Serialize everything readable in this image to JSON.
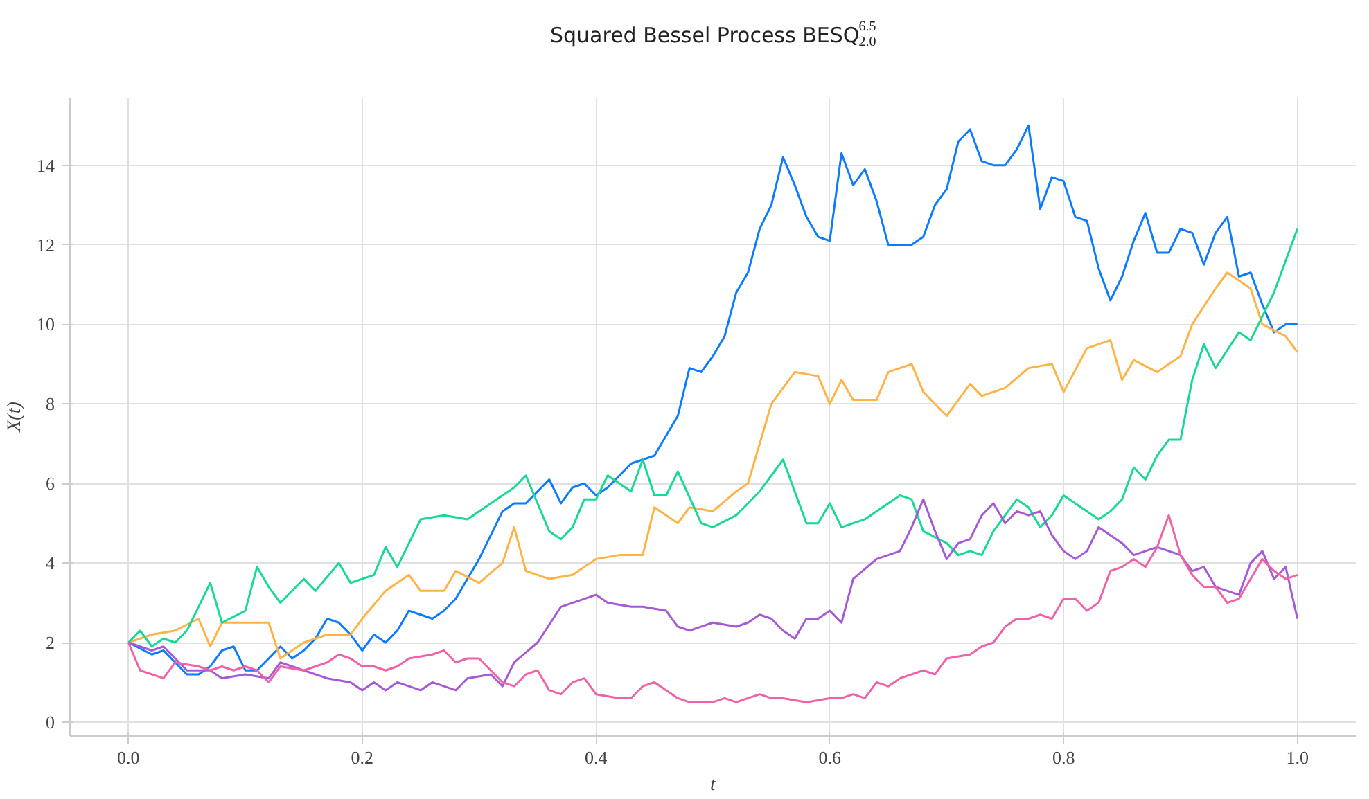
{
  "chart_data": {
    "type": "line",
    "title": "Squared Bessel Process BESQ$^{6.5}$$_{2.0}$",
    "xlabel": "t",
    "ylabel": "X(t)",
    "xlim": [
      -0.05,
      1.05
    ],
    "ylim": [
      -0.35,
      15.7
    ],
    "xticks": [
      {
        "value": 0,
        "label": "0.0"
      },
      0.2,
      0.4,
      0.6,
      0.8,
      {
        "value": 1,
        "label": "1.0"
      }
    ],
    "yticks": [
      0,
      2,
      4,
      6,
      8,
      10,
      12,
      14
    ],
    "grid": true,
    "line_style": "solid",
    "marker": "none",
    "series": [
      {
        "color": "#0c7bff",
        "x": [
          0,
          0.02,
          0.03,
          0.04,
          0.05,
          0.06,
          0.07,
          0.08,
          0.09,
          0.1,
          0.11,
          0.12,
          0.13,
          0.14,
          0.15,
          0.16,
          0.17,
          0.18,
          0.19,
          0.2,
          0.21,
          0.22,
          0.23,
          0.24,
          0.25,
          0.26,
          0.27,
          0.28,
          0.29,
          0.3,
          0.31,
          0.32,
          0.33,
          0.34,
          0.35,
          0.36,
          0.37,
          0.38,
          0.39,
          0.4,
          0.41,
          0.42,
          0.43,
          0.44,
          0.45,
          0.46,
          0.47,
          0.48,
          0.49,
          0.5,
          0.51,
          0.52,
          0.53,
          0.54,
          0.55,
          0.56,
          0.57,
          0.58,
          0.59,
          0.6,
          0.61,
          0.62,
          0.63,
          0.64,
          0.65,
          0.66,
          0.67,
          0.68,
          0.69,
          0.7,
          0.71,
          0.72,
          0.73,
          0.74,
          0.75,
          0.76,
          0.77,
          0.78,
          0.79,
          0.8,
          0.81,
          0.82,
          0.83,
          0.84,
          0.85,
          0.86,
          0.87,
          0.88,
          0.89,
          0.9,
          0.91,
          0.92,
          0.93,
          0.94,
          0.95,
          0.96,
          0.97,
          0.98,
          0.99,
          1.0
        ],
        "values": [
          2,
          1.7,
          1.8,
          1.5,
          1.2,
          1.2,
          1.4,
          1.8,
          1.9,
          1.3,
          1.3,
          1.6,
          1.9,
          1.6,
          1.8,
          2.1,
          2.6,
          2.5,
          2.2,
          1.8,
          2.2,
          2.0,
          2.3,
          2.8,
          2.7,
          2.6,
          2.8,
          3.1,
          3.6,
          4.1,
          4.7,
          5.3,
          5.5,
          5.5,
          5.8,
          6.1,
          5.5,
          5.9,
          6.0,
          5.7,
          5.9,
          6.2,
          6.5,
          6.6,
          6.7,
          7.2,
          7.7,
          8.9,
          8.8,
          9.2,
          9.7,
          10.8,
          11.3,
          12.4,
          13.0,
          14.2,
          13.5,
          12.7,
          12.2,
          12.1,
          14.3,
          13.5,
          13.9,
          13.1,
          12.0,
          12.0,
          12.0,
          12.2,
          13.0,
          13.4,
          14.6,
          14.9,
          14.1,
          14.0,
          14.0,
          14.4,
          15.0,
          12.9,
          13.7,
          13.6,
          12.7,
          12.6,
          11.4,
          10.6,
          11.2,
          12.1,
          12.8,
          11.8,
          11.8,
          12.4,
          12.3,
          11.5,
          12.3,
          12.7,
          11.2,
          11.3,
          10.5,
          9.8,
          10.0,
          10.0
        ]
      },
      {
        "color": "#ffb347",
        "x": [
          0,
          0.02,
          0.04,
          0.06,
          0.07,
          0.08,
          0.1,
          0.12,
          0.13,
          0.15,
          0.17,
          0.19,
          0.2,
          0.22,
          0.24,
          0.25,
          0.27,
          0.28,
          0.3,
          0.32,
          0.33,
          0.34,
          0.36,
          0.38,
          0.4,
          0.42,
          0.44,
          0.45,
          0.47,
          0.48,
          0.5,
          0.52,
          0.53,
          0.55,
          0.57,
          0.59,
          0.6,
          0.61,
          0.62,
          0.64,
          0.65,
          0.67,
          0.68,
          0.7,
          0.72,
          0.73,
          0.75,
          0.77,
          0.79,
          0.8,
          0.82,
          0.84,
          0.85,
          0.86,
          0.88,
          0.9,
          0.91,
          0.93,
          0.94,
          0.96,
          0.97,
          0.99,
          1.0
        ],
        "values": [
          2,
          2.2,
          2.3,
          2.6,
          1.9,
          2.5,
          2.5,
          2.5,
          1.6,
          2.0,
          2.2,
          2.2,
          2.6,
          3.3,
          3.7,
          3.3,
          3.3,
          3.8,
          3.5,
          4.0,
          4.9,
          3.8,
          3.6,
          3.7,
          4.1,
          4.2,
          4.2,
          5.4,
          5.0,
          5.4,
          5.3,
          5.8,
          6.0,
          8.0,
          8.8,
          8.7,
          8.0,
          8.6,
          8.1,
          8.1,
          8.8,
          9.0,
          8.3,
          7.7,
          8.5,
          8.2,
          8.4,
          8.9,
          9.0,
          8.3,
          9.4,
          9.6,
          8.6,
          9.1,
          8.8,
          9.2,
          10.0,
          10.9,
          11.3,
          10.9,
          10.0,
          9.7,
          9.3
        ]
      },
      {
        "color": "#18d895",
        "x": [
          0,
          0.01,
          0.02,
          0.03,
          0.04,
          0.05,
          0.06,
          0.07,
          0.08,
          0.1,
          0.11,
          0.12,
          0.13,
          0.15,
          0.16,
          0.18,
          0.19,
          0.21,
          0.22,
          0.23,
          0.25,
          0.27,
          0.29,
          0.31,
          0.33,
          0.34,
          0.36,
          0.37,
          0.38,
          0.39,
          0.4,
          0.41,
          0.43,
          0.44,
          0.45,
          0.46,
          0.47,
          0.49,
          0.5,
          0.52,
          0.54,
          0.56,
          0.58,
          0.59,
          0.6,
          0.61,
          0.63,
          0.65,
          0.66,
          0.67,
          0.68,
          0.7,
          0.71,
          0.72,
          0.73,
          0.74,
          0.76,
          0.77,
          0.78,
          0.79,
          0.8,
          0.82,
          0.83,
          0.84,
          0.85,
          0.86,
          0.87,
          0.88,
          0.89,
          0.9,
          0.91,
          0.92,
          0.93,
          0.95,
          0.96,
          0.98,
          0.99,
          1.0
        ],
        "values": [
          2,
          2.3,
          1.9,
          2.1,
          2.0,
          2.3,
          2.9,
          3.5,
          2.5,
          2.8,
          3.9,
          3.4,
          3.0,
          3.6,
          3.3,
          4.0,
          3.5,
          3.7,
          4.4,
          3.9,
          5.1,
          5.2,
          5.1,
          5.5,
          5.9,
          6.2,
          4.8,
          4.6,
          4.9,
          5.6,
          5.6,
          6.2,
          5.8,
          6.6,
          5.7,
          5.7,
          6.3,
          5.0,
          4.9,
          5.2,
          5.8,
          6.6,
          5.0,
          5.0,
          5.5,
          4.9,
          5.1,
          5.5,
          5.7,
          5.6,
          4.8,
          4.5,
          4.2,
          4.3,
          4.2,
          4.8,
          5.6,
          5.4,
          4.9,
          5.2,
          5.7,
          5.3,
          5.1,
          5.3,
          5.6,
          6.4,
          6.1,
          6.7,
          7.1,
          7.1,
          8.6,
          9.5,
          8.9,
          9.8,
          9.6,
          10.8,
          11.6,
          12.4
        ]
      },
      {
        "color": "#a659d6",
        "x": [
          0,
          0.02,
          0.03,
          0.05,
          0.07,
          0.08,
          0.1,
          0.12,
          0.13,
          0.15,
          0.17,
          0.19,
          0.2,
          0.21,
          0.22,
          0.23,
          0.25,
          0.26,
          0.28,
          0.29,
          0.31,
          0.32,
          0.33,
          0.35,
          0.37,
          0.38,
          0.39,
          0.4,
          0.41,
          0.43,
          0.44,
          0.46,
          0.47,
          0.48,
          0.5,
          0.52,
          0.53,
          0.54,
          0.55,
          0.56,
          0.57,
          0.58,
          0.59,
          0.6,
          0.61,
          0.62,
          0.64,
          0.66,
          0.67,
          0.68,
          0.69,
          0.7,
          0.71,
          0.72,
          0.73,
          0.74,
          0.75,
          0.76,
          0.77,
          0.78,
          0.79,
          0.8,
          0.81,
          0.82,
          0.83,
          0.85,
          0.86,
          0.87,
          0.88,
          0.9,
          0.91,
          0.92,
          0.93,
          0.94,
          0.95,
          0.96,
          0.97,
          0.98,
          0.99,
          1.0
        ],
        "values": [
          2,
          1.8,
          1.9,
          1.3,
          1.3,
          1.1,
          1.2,
          1.1,
          1.5,
          1.3,
          1.1,
          1.0,
          0.8,
          1.0,
          0.8,
          1.0,
          0.8,
          1.0,
          0.8,
          1.1,
          1.2,
          0.9,
          1.5,
          2.0,
          2.9,
          3.0,
          3.1,
          3.2,
          3.0,
          2.9,
          2.9,
          2.8,
          2.4,
          2.3,
          2.5,
          2.4,
          2.5,
          2.7,
          2.6,
          2.3,
          2.1,
          2.6,
          2.6,
          2.8,
          2.5,
          3.6,
          4.1,
          4.3,
          4.9,
          5.6,
          4.8,
          4.1,
          4.5,
          4.6,
          5.2,
          5.5,
          5.0,
          5.3,
          5.2,
          5.3,
          4.7,
          4.3,
          4.1,
          4.3,
          4.9,
          4.5,
          4.2,
          4.3,
          4.4,
          4.2,
          3.8,
          3.9,
          3.4,
          3.3,
          3.2,
          4.0,
          4.3,
          3.6,
          3.9,
          2.6
        ]
      },
      {
        "color": "#f062a8",
        "x": [
          0,
          0.01,
          0.03,
          0.04,
          0.06,
          0.07,
          0.08,
          0.09,
          0.1,
          0.11,
          0.12,
          0.13,
          0.15,
          0.17,
          0.18,
          0.19,
          0.2,
          0.21,
          0.22,
          0.23,
          0.24,
          0.26,
          0.27,
          0.28,
          0.29,
          0.3,
          0.32,
          0.33,
          0.34,
          0.35,
          0.36,
          0.37,
          0.38,
          0.39,
          0.4,
          0.42,
          0.43,
          0.44,
          0.45,
          0.47,
          0.48,
          0.5,
          0.51,
          0.52,
          0.53,
          0.54,
          0.55,
          0.56,
          0.58,
          0.6,
          0.61,
          0.62,
          0.63,
          0.64,
          0.65,
          0.66,
          0.68,
          0.69,
          0.7,
          0.72,
          0.73,
          0.74,
          0.75,
          0.76,
          0.77,
          0.78,
          0.79,
          0.8,
          0.81,
          0.82,
          0.83,
          0.84,
          0.85,
          0.86,
          0.87,
          0.88,
          0.89,
          0.9,
          0.91,
          0.92,
          0.93,
          0.94,
          0.95,
          0.96,
          0.97,
          0.98,
          0.99,
          1.0
        ],
        "values": [
          2,
          1.3,
          1.1,
          1.5,
          1.4,
          1.3,
          1.4,
          1.3,
          1.4,
          1.3,
          1.0,
          1.4,
          1.3,
          1.5,
          1.7,
          1.6,
          1.4,
          1.4,
          1.3,
          1.4,
          1.6,
          1.7,
          1.8,
          1.5,
          1.6,
          1.6,
          1.0,
          0.9,
          1.2,
          1.3,
          0.8,
          0.7,
          1.0,
          1.1,
          0.7,
          0.6,
          0.6,
          0.9,
          1.0,
          0.6,
          0.5,
          0.5,
          0.6,
          0.5,
          0.6,
          0.7,
          0.6,
          0.6,
          0.5,
          0.6,
          0.6,
          0.7,
          0.6,
          1.0,
          0.9,
          1.1,
          1.3,
          1.2,
          1.6,
          1.7,
          1.9,
          2.0,
          2.4,
          2.6,
          2.6,
          2.7,
          2.6,
          3.1,
          3.1,
          2.8,
          3.0,
          3.8,
          3.9,
          4.1,
          3.9,
          4.4,
          5.2,
          4.2,
          3.7,
          3.4,
          3.4,
          3.0,
          3.1,
          3.6,
          4.1,
          3.8,
          3.6,
          3.7
        ]
      }
    ]
  }
}
